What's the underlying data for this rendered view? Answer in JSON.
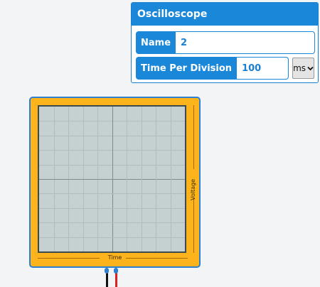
{
  "panel": {
    "title": "Oscilloscope",
    "name_label": "Name",
    "name_value": "2",
    "tpd_label": "Time Per Division",
    "tpd_value": "100",
    "unit_value": "ms",
    "unit_icon": "chevron-down-icon"
  },
  "scope": {
    "x_axis_label": "Time",
    "y_axis_label": "Voltage",
    "grid_divisions": 10,
    "colors": {
      "body": "#fcb31c",
      "border": "#2e7fd0",
      "screen": "#c5d1d1",
      "lead_negative": "#111111",
      "lead_positive": "#e02020"
    }
  }
}
